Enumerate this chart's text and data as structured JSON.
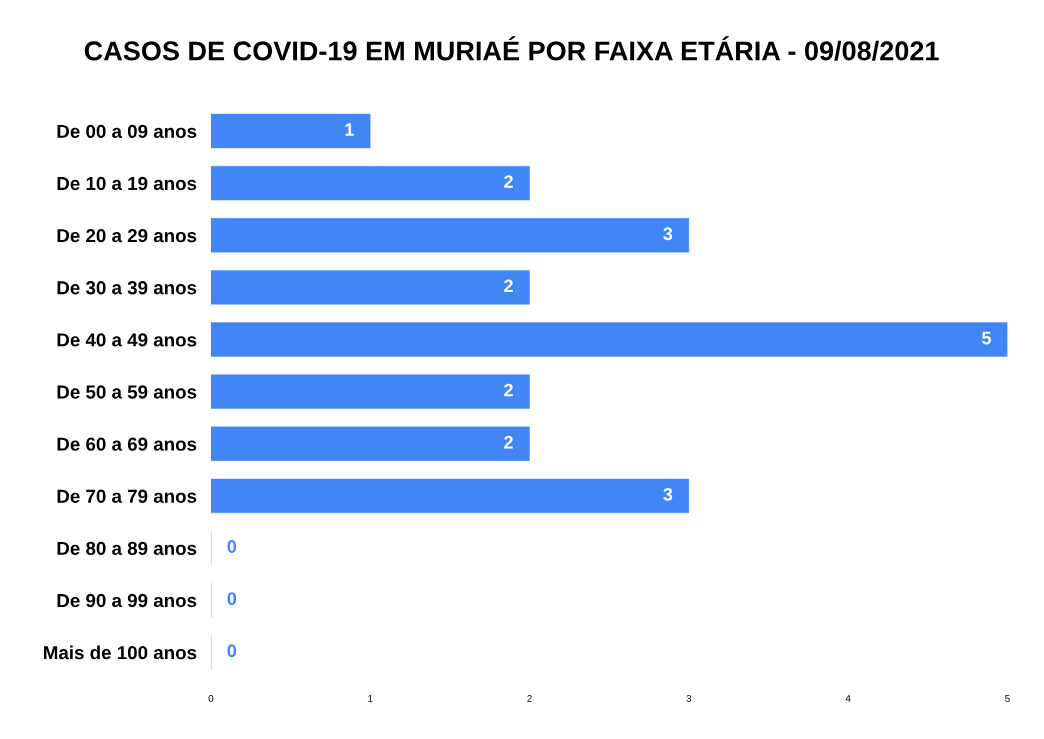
{
  "chart_data": {
    "type": "bar",
    "orientation": "horizontal",
    "title": "CASOS DE COVID-19 EM MURIAÉ POR FAIXA ETÁRIA - 09/08/2021",
    "categories": [
      "De 00 a 09 anos",
      "De 10 a 19 anos",
      "De 20 a 29 anos",
      "De 30 a 39 anos",
      "De 40 a 49 anos",
      "De 50 a 59 anos",
      "De 60 a 69 anos",
      "De 70 a 79 anos",
      "De 80 a 89 anos",
      "De 90 a 99 anos",
      "Mais de 100 anos"
    ],
    "values": [
      1,
      2,
      3,
      2,
      5,
      2,
      2,
      3,
      0,
      0,
      0
    ],
    "color": "#4285f4",
    "xlim": [
      0,
      5
    ],
    "xticks": [
      0,
      1,
      2,
      3,
      4,
      5
    ],
    "grid": false,
    "data_labels": true
  }
}
